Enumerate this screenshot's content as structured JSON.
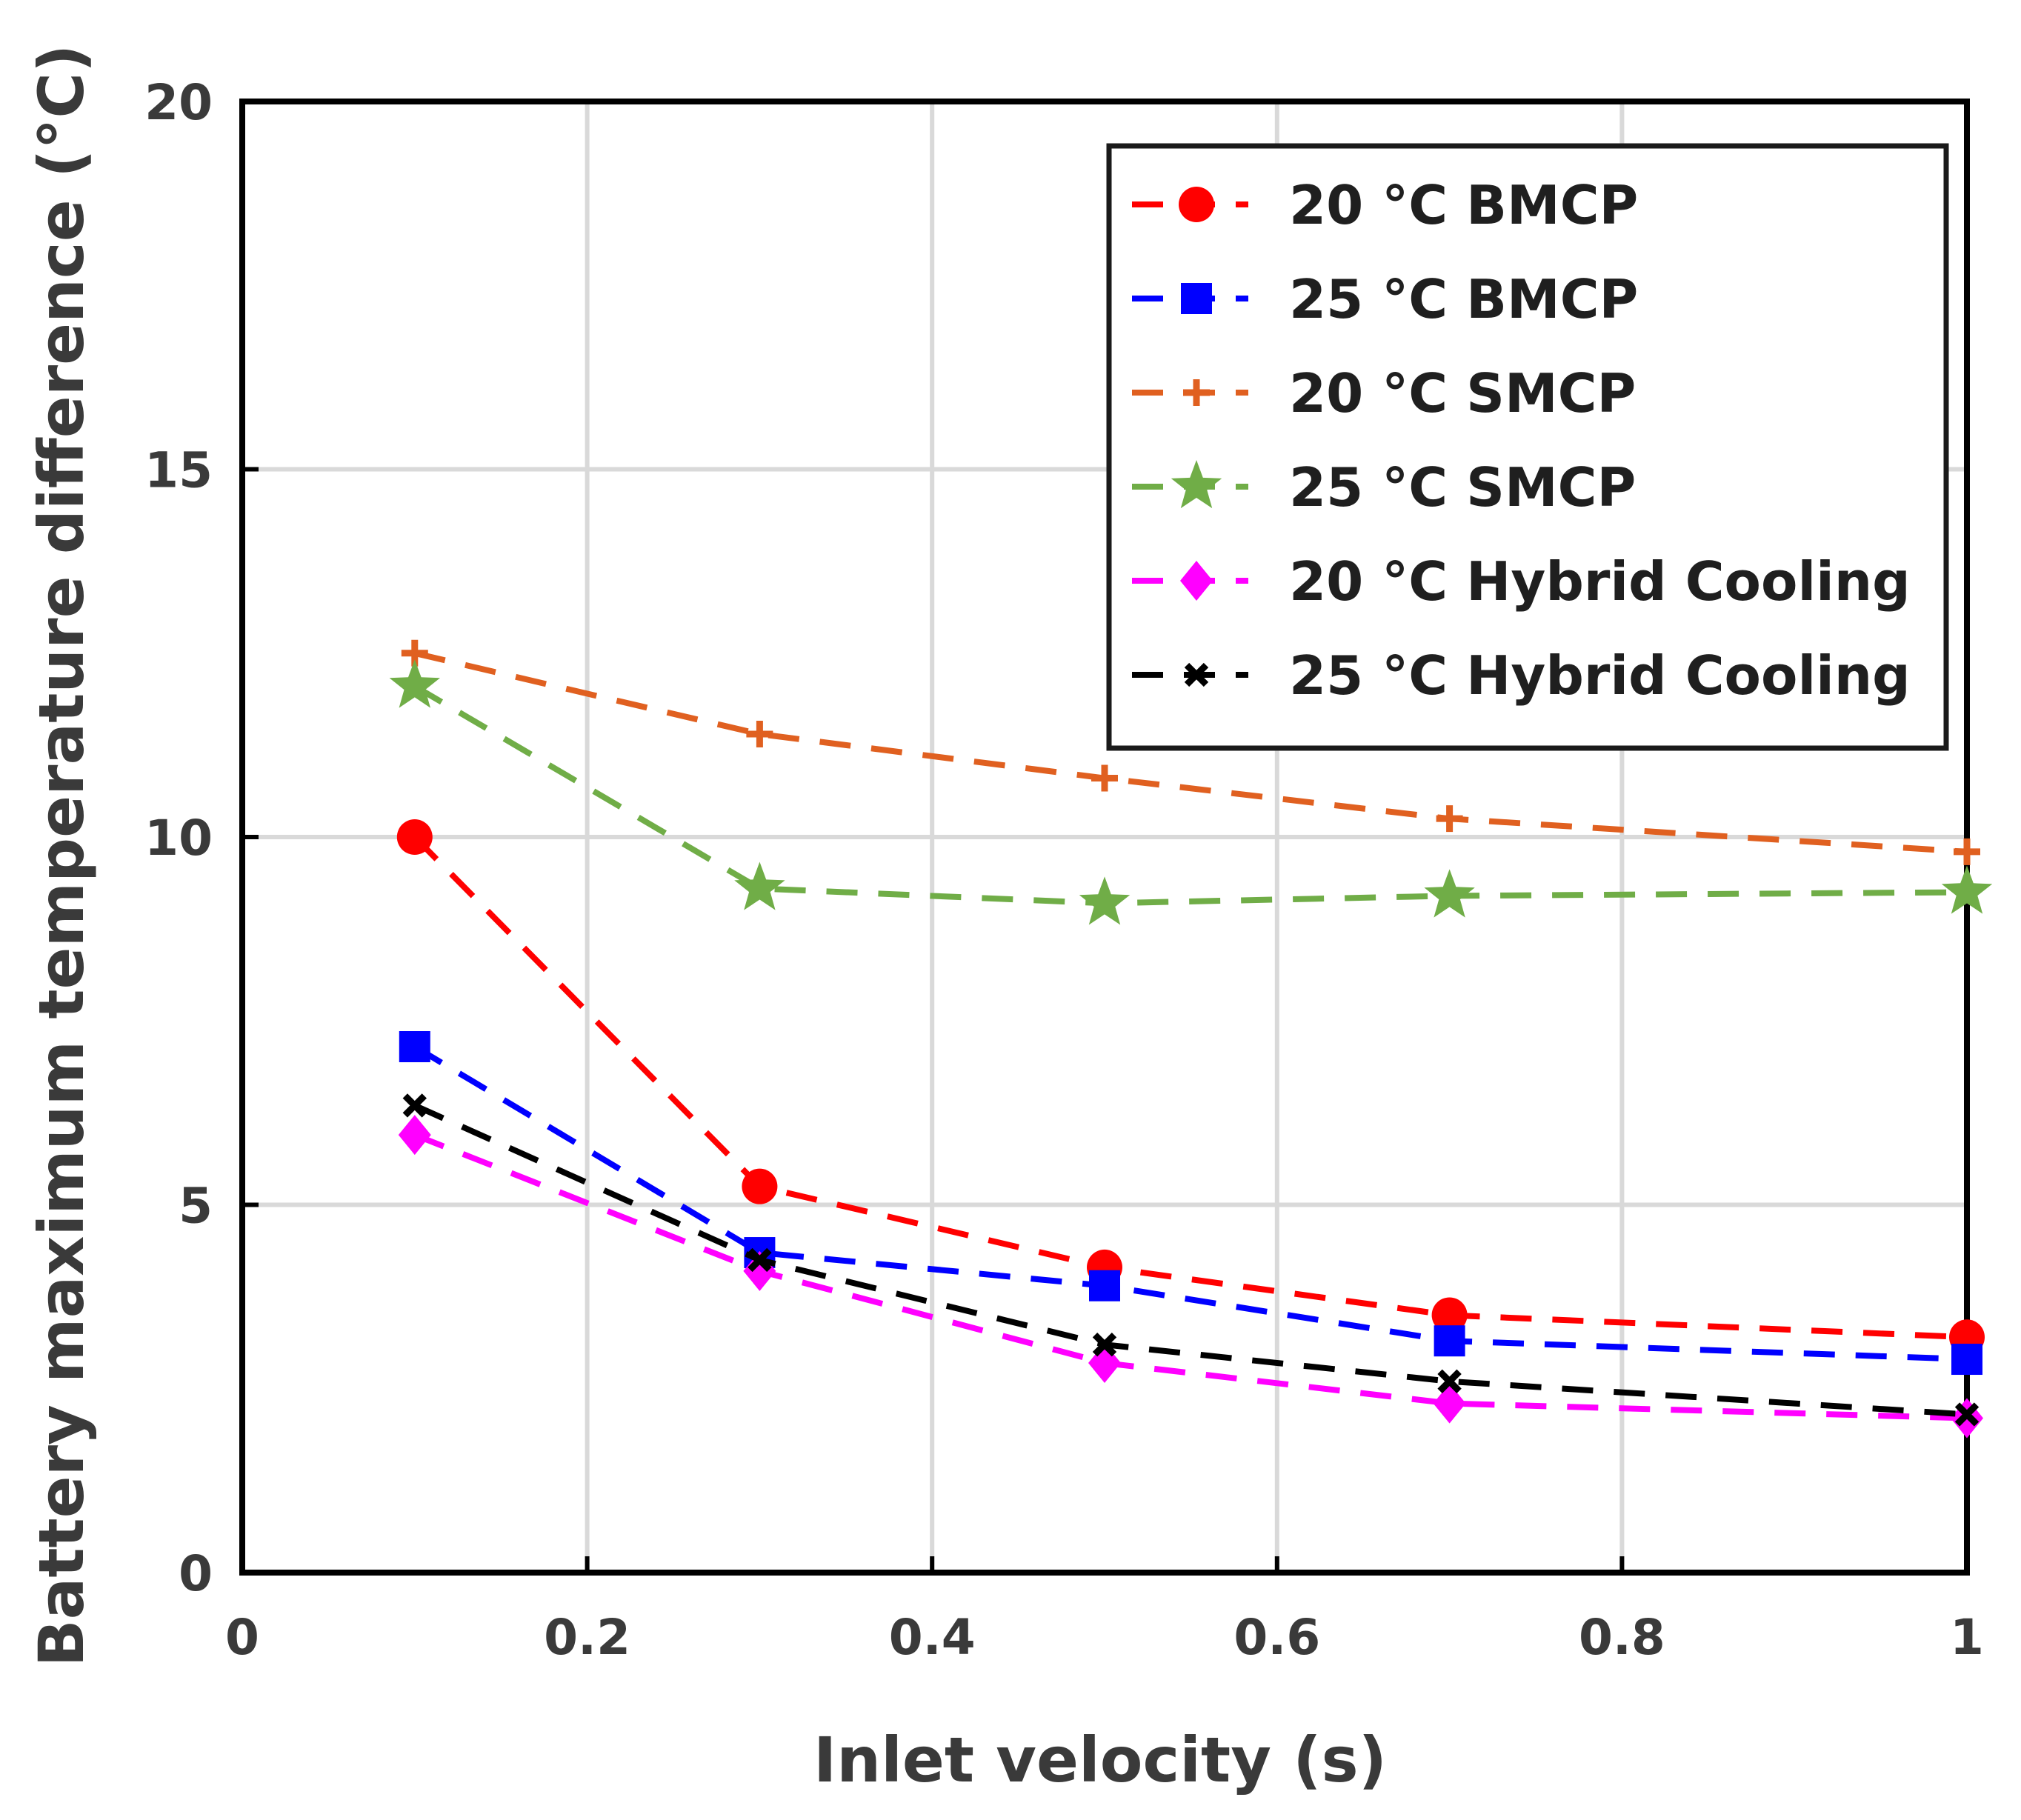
{
  "chart_data": {
    "type": "line",
    "title": "",
    "xlabel": "Inlet velocity (s)",
    "ylabel": "Battery maximum temperature difference (°C)",
    "xlim": [
      0,
      1
    ],
    "ylim": [
      0,
      20
    ],
    "xticks": [
      0,
      0.2,
      0.4,
      0.6,
      0.8,
      1
    ],
    "xtick_labels": [
      "0",
      "0.2",
      "0.4",
      "0.6",
      "0.8",
      "1"
    ],
    "yticks": [
      0,
      5,
      10,
      15,
      20
    ],
    "ytick_labels": [
      "0",
      "5",
      "10",
      "15",
      "20"
    ],
    "grid": true,
    "legend_position": "top-right",
    "x": [
      0.1,
      0.3,
      0.5,
      0.7,
      1.0
    ],
    "series": [
      {
        "name": "20 °C BMCP",
        "color": "#ff0000",
        "marker": "circle",
        "values": [
          10.0,
          5.25,
          4.15,
          3.5,
          3.2
        ]
      },
      {
        "name": "25 °C BMCP",
        "color": "#0000ff",
        "marker": "square",
        "values": [
          7.15,
          4.35,
          3.9,
          3.15,
          2.9
        ]
      },
      {
        "name": "20 °C SMCP",
        "color": "#e06020",
        "marker": "plus",
        "values": [
          12.5,
          11.4,
          10.8,
          10.25,
          9.8
        ]
      },
      {
        "name": "25 °C SMCP",
        "color": "#70ad47",
        "marker": "star",
        "values": [
          12.05,
          9.3,
          9.1,
          9.2,
          9.25
        ]
      },
      {
        "name": "20 °C Hybrid Cooling",
        "color": "#ff00ff",
        "marker": "diamond",
        "values": [
          5.95,
          4.1,
          2.85,
          2.3,
          2.1
        ]
      },
      {
        "name": "25 °C Hybrid Cooling",
        "color": "#000000",
        "marker": "x",
        "values": [
          6.35,
          4.25,
          3.1,
          2.6,
          2.15
        ]
      }
    ]
  }
}
